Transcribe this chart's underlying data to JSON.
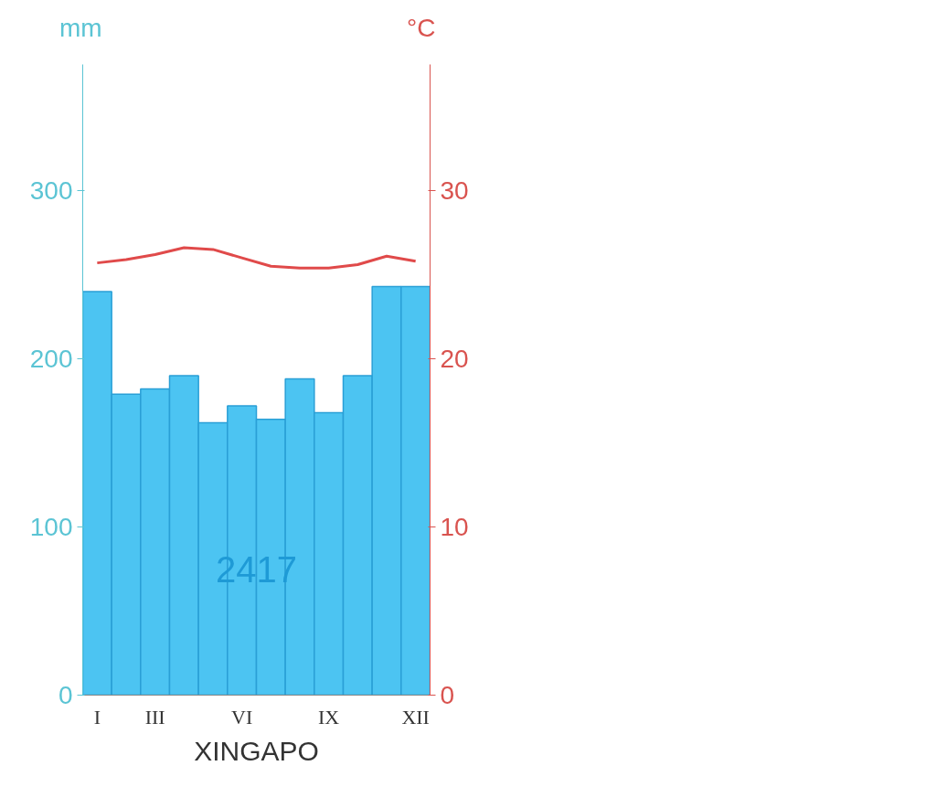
{
  "chart_data": {
    "type": "bar",
    "xlabel": "XINGAPO",
    "ylabel": "mm",
    "y2label": "°C",
    "categories": [
      "I",
      null,
      "III",
      null,
      null,
      "VI",
      null,
      null,
      "IX",
      null,
      null,
      "XII"
    ],
    "series": [
      {
        "color": "#4cc4f2",
        "values": [
          240,
          179,
          182,
          190,
          162,
          172,
          164,
          188,
          168,
          190,
          243,
          243
        ]
      },
      {
        "type": "line",
        "axis": "y2",
        "color": "#e04a4a",
        "values": [
          25.7,
          25.9,
          26.2,
          26.6,
          26.5,
          26.0,
          25.5,
          25.4,
          25.4,
          25.6,
          26.1,
          25.8
        ]
      }
    ],
    "ylim": [
      0,
      375
    ],
    "yticks": [
      0,
      100,
      200,
      300
    ],
    "y2lim": [
      0,
      37.5
    ],
    "y2ticks": [
      0,
      10,
      20,
      30
    ],
    "annotations": [
      "2417"
    ]
  }
}
